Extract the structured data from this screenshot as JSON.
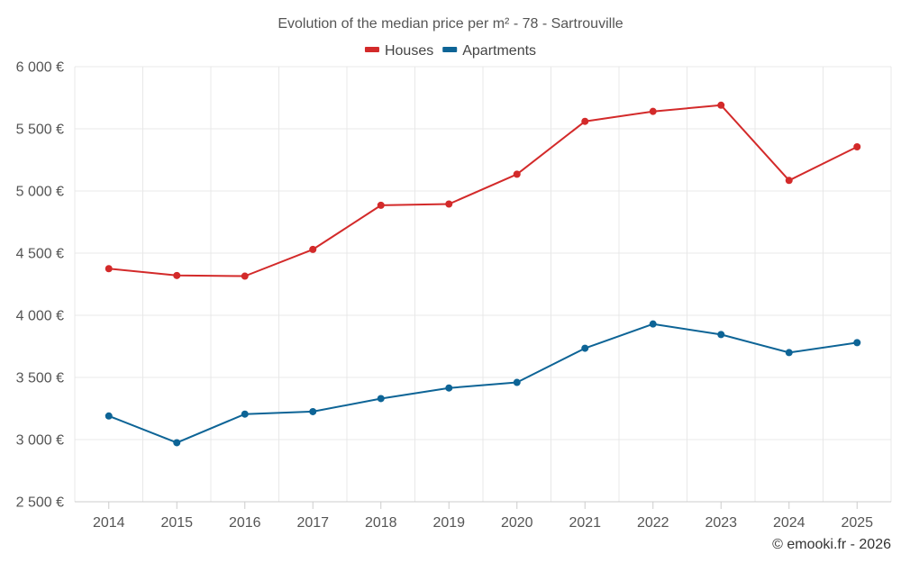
{
  "chart_data": {
    "type": "line",
    "title": "Evolution of the median price per m² - 78 - Sartrouville",
    "categories": [
      "2014",
      "2015",
      "2016",
      "2017",
      "2018",
      "2019",
      "2020",
      "2021",
      "2022",
      "2023",
      "2024",
      "2025"
    ],
    "ylim": [
      2500,
      6000
    ],
    "yticks": [
      2500,
      3000,
      3500,
      4000,
      4500,
      5000,
      5500,
      6000
    ],
    "ytick_labels": [
      "2 500 €",
      "3 000 €",
      "3 500 €",
      "4 000 €",
      "4 500 €",
      "5 000 €",
      "5 500 €",
      "6 000 €"
    ],
    "grid": true,
    "legend_position": "top-center",
    "series": [
      {
        "name": "Houses",
        "color": "#d32a2a",
        "values": [
          4375,
          4320,
          4315,
          4530,
          4885,
          4895,
          5135,
          5560,
          5640,
          5690,
          5085,
          5355
        ]
      },
      {
        "name": "Apartments",
        "color": "#0d6496",
        "values": [
          3190,
          2975,
          3205,
          3225,
          3330,
          3415,
          3460,
          3735,
          3930,
          3845,
          3700,
          3780
        ]
      }
    ]
  },
  "credit": "© emooki.fr - 2026"
}
